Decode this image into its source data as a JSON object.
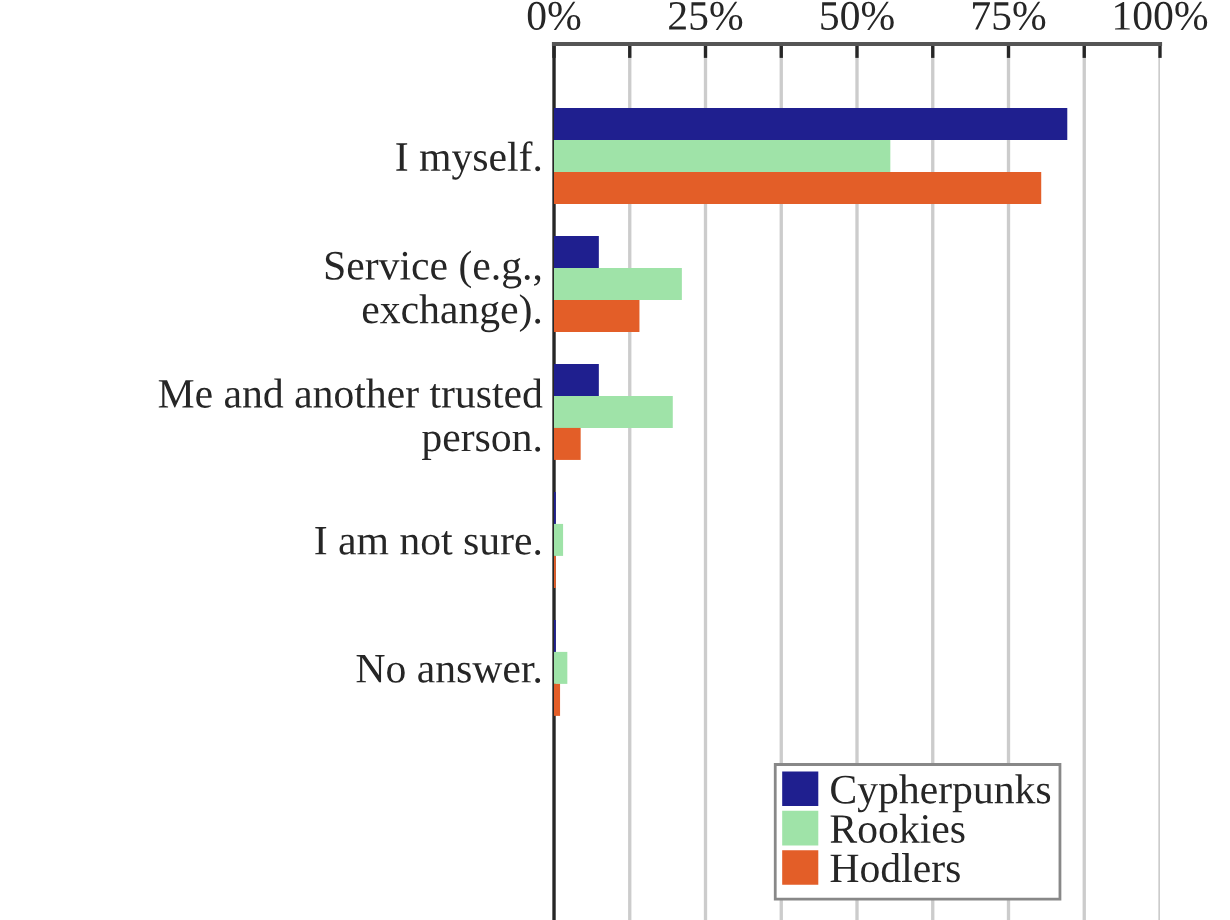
{
  "chart_data": {
    "type": "bar",
    "orientation": "horizontal",
    "categories": [
      "I myself.",
      "Service (e.g.,\nexchange).",
      "Me and another trusted\nperson.",
      "I am not sure.",
      "No answer."
    ],
    "series": [
      {
        "name": "Cypherpunks",
        "color": "#1f1f8f",
        "values": [
          84.7,
          7.4,
          7.4,
          0.3,
          0.3
        ]
      },
      {
        "name": "Rookies",
        "color": "#9fe3a8",
        "values": [
          55.5,
          21.1,
          19.6,
          1.5,
          2.2
        ]
      },
      {
        "name": "Hodlers",
        "color": "#e35e28",
        "values": [
          80.4,
          14.1,
          4.4,
          0.3,
          1.0
        ]
      }
    ],
    "xlim": [
      0,
      100
    ],
    "xticks": [
      {
        "value": 0,
        "label": "0%"
      },
      {
        "value": 12.5,
        "label": null
      },
      {
        "value": 25,
        "label": "25%"
      },
      {
        "value": 37.5,
        "label": null
      },
      {
        "value": 50,
        "label": "50%"
      },
      {
        "value": 62.5,
        "label": null
      },
      {
        "value": 75,
        "label": "75%"
      },
      {
        "value": 87.5,
        "label": null
      },
      {
        "value": 100,
        "label": "100%"
      }
    ],
    "grid": "x",
    "legend": "bottom"
  }
}
